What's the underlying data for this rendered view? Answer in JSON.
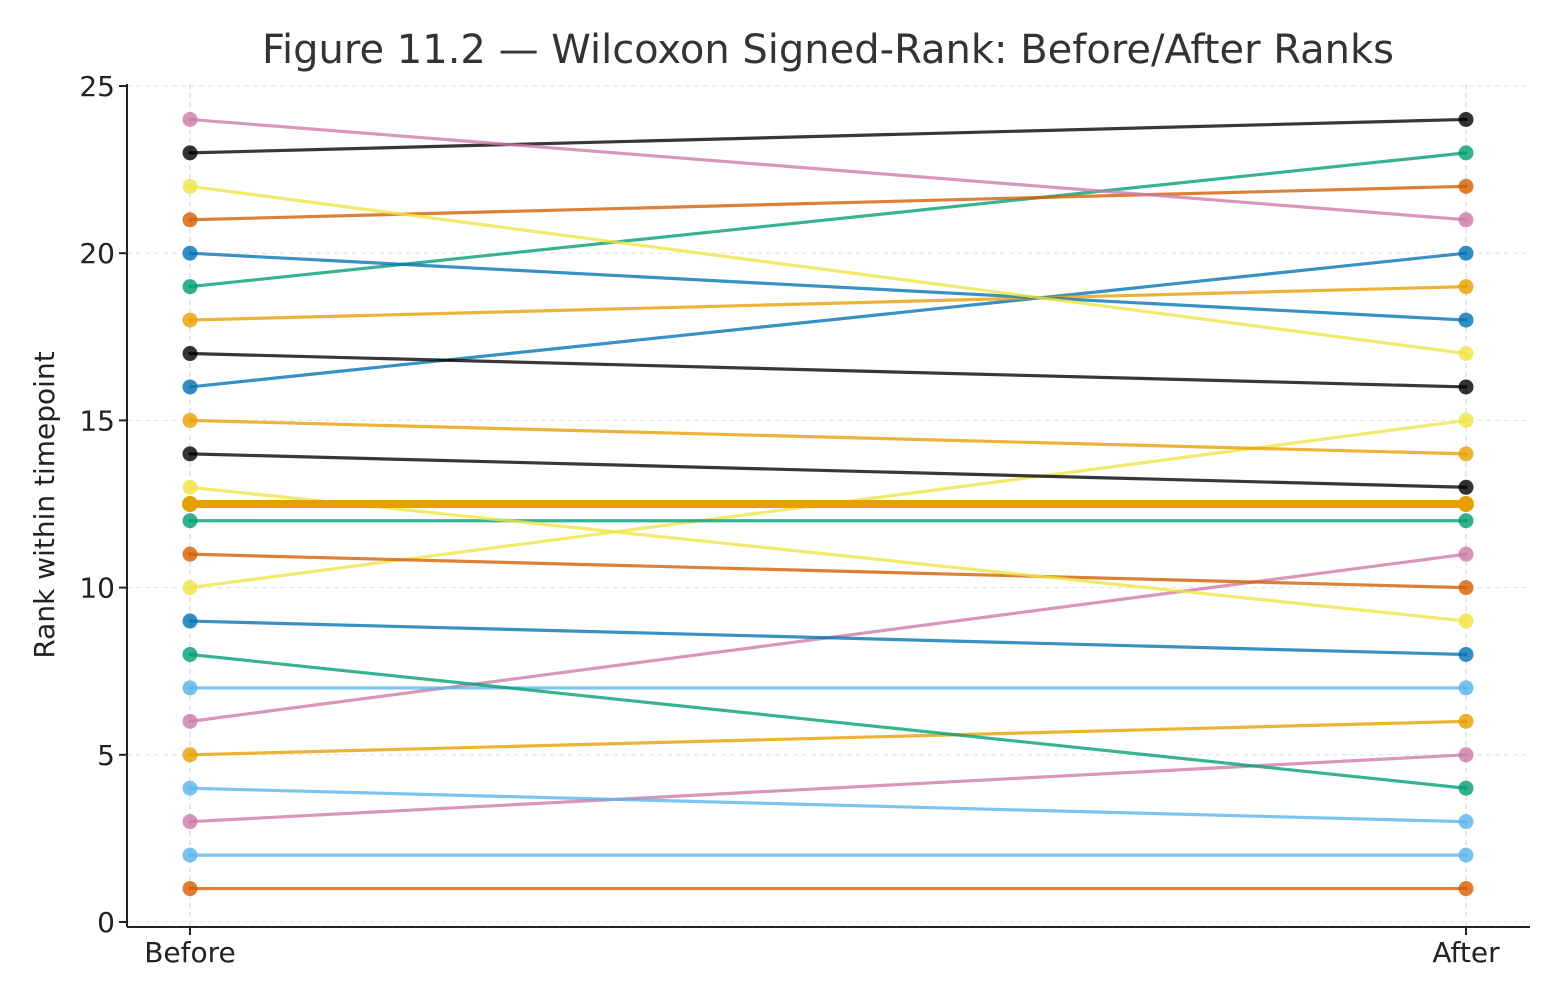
{
  "chart_data": {
    "type": "line",
    "title": "Figure 11.2 — Wilcoxon Signed-Rank: Before/After Ranks",
    "xlabel": "",
    "ylabel": "Rank within timepoint",
    "categories": [
      "Before",
      "After"
    ],
    "ylim": [
      0,
      25
    ],
    "yticks": [
      0,
      5,
      10,
      15,
      20,
      25
    ],
    "grid": true,
    "palette": {
      "orange": "#D55E00",
      "skyblue": "#56B4E9",
      "pink": "#CC79A7",
      "amber": "#E69F00",
      "yellow": "#F0E442",
      "blue": "#0072B2",
      "green": "#009E73",
      "black": "#000000"
    },
    "series": [
      {
        "values": [
          1,
          1
        ],
        "color": "#D55E00"
      },
      {
        "values": [
          2,
          2
        ],
        "color": "#56B4E9"
      },
      {
        "values": [
          3,
          5
        ],
        "color": "#CC79A7"
      },
      {
        "values": [
          4,
          3
        ],
        "color": "#56B4E9"
      },
      {
        "values": [
          5,
          6
        ],
        "color": "#E69F00"
      },
      {
        "values": [
          6,
          11
        ],
        "color": "#CC79A7"
      },
      {
        "values": [
          7,
          7
        ],
        "color": "#56B4E9"
      },
      {
        "values": [
          8,
          4
        ],
        "color": "#009E73"
      },
      {
        "values": [
          9,
          8
        ],
        "color": "#0072B2"
      },
      {
        "values": [
          10,
          15
        ],
        "color": "#F0E442"
      },
      {
        "values": [
          11,
          10
        ],
        "color": "#D55E00"
      },
      {
        "values": [
          12,
          12
        ],
        "color": "#009E73"
      },
      {
        "values": [
          13,
          9
        ],
        "color": "#F0E442"
      },
      {
        "values": [
          14,
          13
        ],
        "color": "#000000"
      },
      {
        "values": [
          15,
          14
        ],
        "color": "#E69F00"
      },
      {
        "values": [
          16,
          20
        ],
        "color": "#0072B2"
      },
      {
        "values": [
          17,
          16
        ],
        "color": "#000000"
      },
      {
        "values": [
          18,
          19
        ],
        "color": "#E69F00"
      },
      {
        "values": [
          19,
          23
        ],
        "color": "#009E73"
      },
      {
        "values": [
          20,
          18
        ],
        "color": "#0072B2"
      },
      {
        "values": [
          21,
          22
        ],
        "color": "#D55E00"
      },
      {
        "values": [
          22,
          17
        ],
        "color": "#F0E442"
      },
      {
        "values": [
          23,
          24
        ],
        "color": "#000000"
      },
      {
        "values": [
          24,
          21
        ],
        "color": "#CC79A7"
      }
    ],
    "mean_line": {
      "values": [
        12.5,
        12.5
      ],
      "color": "#E69F00"
    }
  }
}
